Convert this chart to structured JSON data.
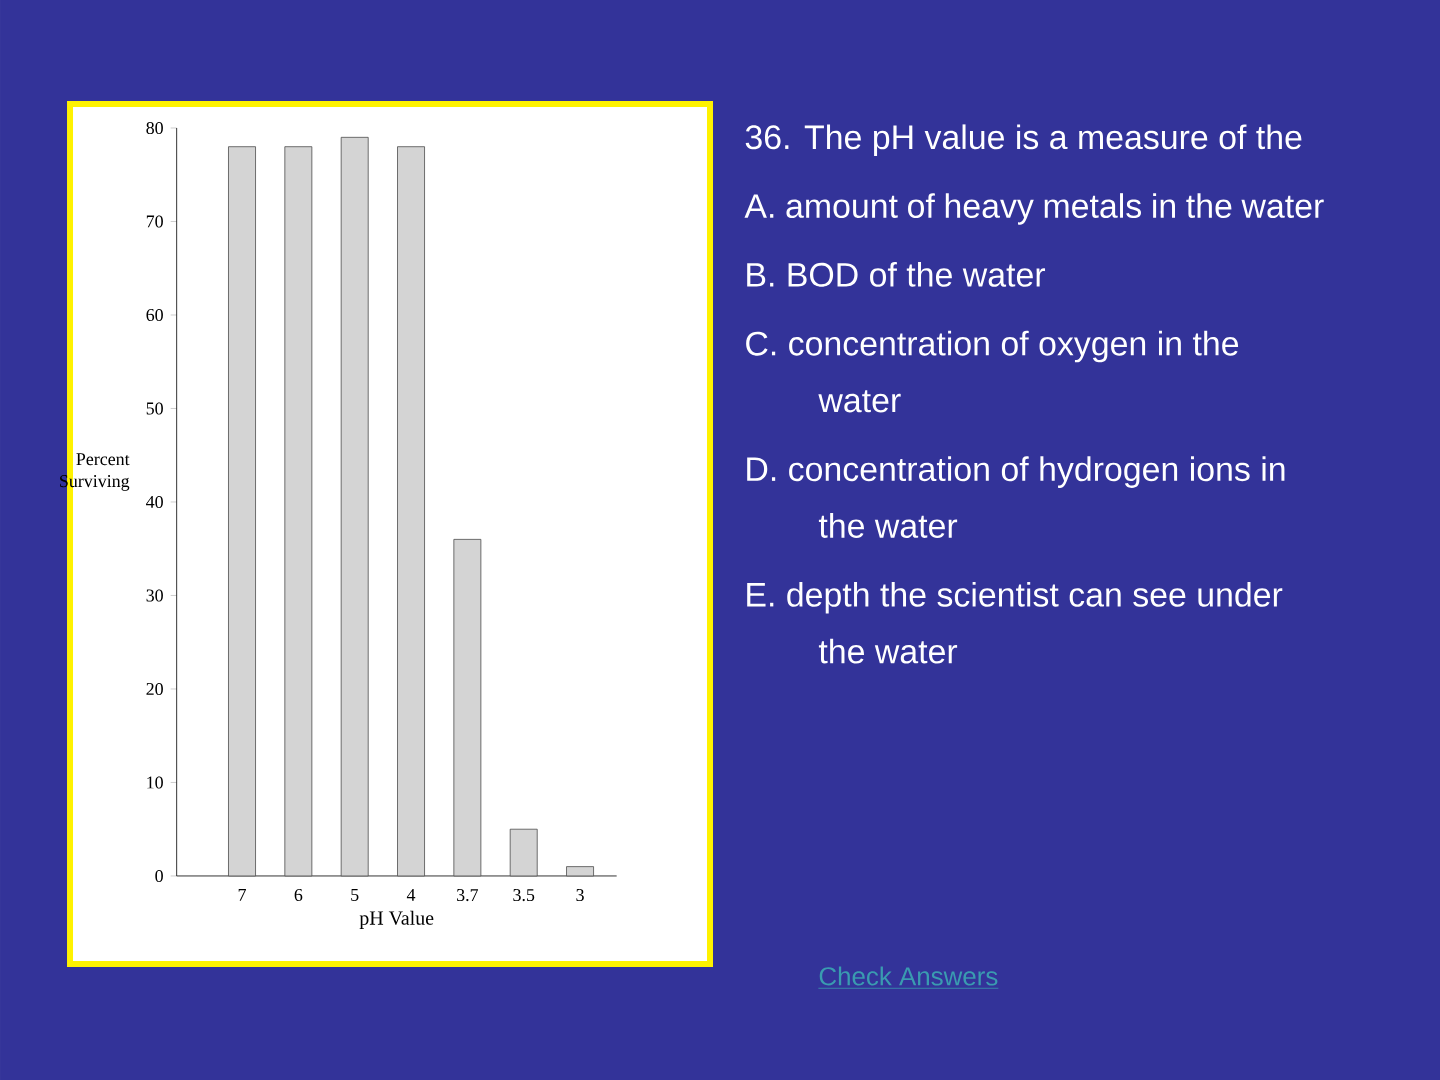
{
  "chart_data": {
    "type": "bar",
    "categories": [
      "7",
      "6",
      "5",
      "4",
      "3.7",
      "3.5",
      "3"
    ],
    "values": [
      78,
      78,
      79,
      78,
      36,
      5,
      1
    ],
    "color": "#d4d4d4",
    "xlabel": "pH Value",
    "ylabel": "Percent Surviving",
    "ylim": [
      0,
      80
    ],
    "yticks": [
      0,
      10,
      20,
      30,
      40,
      50,
      60,
      70,
      80
    ],
    "annotations": [
      "36.  The pH value is a measure of the",
      "A. amount of heavy metals in the water",
      "B. BOD of the water",
      "C. concentration of oxygen in the water",
      "D. concentration of hydrogen ions in the water",
      "E. depth the scientist can see under the water",
      "Check Answers"
    ]
  }
}
